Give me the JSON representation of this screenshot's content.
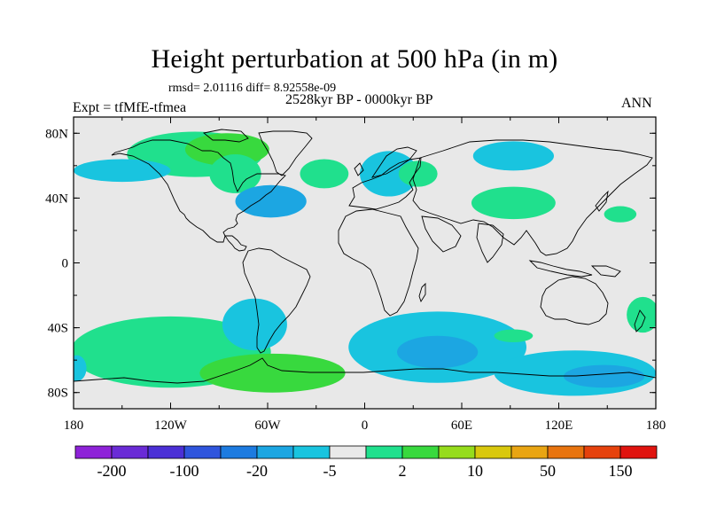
{
  "title": "Height perturbation at 500 hPa (in m)",
  "stats": "rmsd= 2.01116 diff= 8.92558e-09",
  "period": "2528kyr BP - 0000kyr BP",
  "experiment": "Expt = tfMfE-tfmea",
  "season": "ANN",
  "map": {
    "projection": "cylindrical-equidistant",
    "lon_range": [
      -180,
      180
    ],
    "lat_range": [
      -90,
      90
    ],
    "background_color": "#e8e8e8",
    "coastline_color": "#000000",
    "lat_ticks": [
      {
        "value": 80,
        "label": "80N"
      },
      {
        "value": 40,
        "label": "40N"
      },
      {
        "value": 0,
        "label": "0"
      },
      {
        "value": -40,
        "label": "40S"
      },
      {
        "value": -80,
        "label": "80S"
      }
    ],
    "lon_ticks": [
      {
        "value": -180,
        "label": "180"
      },
      {
        "value": -120,
        "label": "120W"
      },
      {
        "value": -60,
        "label": "60W"
      },
      {
        "value": 0,
        "label": "0"
      },
      {
        "value": 60,
        "label": "60E"
      },
      {
        "value": 120,
        "label": "120E"
      },
      {
        "value": 180,
        "label": "180"
      }
    ]
  },
  "colorbar": {
    "colors": [
      "#8e22d8",
      "#6a2bd6",
      "#4b30d6",
      "#2f55dd",
      "#1d7be0",
      "#1ca6e2",
      "#19c4df",
      "#e9e9e9",
      "#20e08d",
      "#38d93e",
      "#96dc1c",
      "#d9c80d",
      "#e9a513",
      "#e8740f",
      "#e6420d",
      "#e0140f"
    ],
    "labels": [
      {
        "after_box": 1,
        "text": "-200"
      },
      {
        "after_box": 3,
        "text": "-100"
      },
      {
        "after_box": 5,
        "text": "-20"
      },
      {
        "after_box": 7,
        "text": "-5"
      },
      {
        "after_box": 9,
        "text": "2"
      },
      {
        "after_box": 11,
        "text": "10"
      },
      {
        "after_box": 13,
        "text": "50"
      },
      {
        "after_box": 15,
        "text": "150"
      }
    ]
  },
  "anomaly_regions": [
    {
      "name": "north-america-positive",
      "color": "#20e08d",
      "lon": -105,
      "lat": 67,
      "rlon": 42,
      "rlat": 14
    },
    {
      "name": "greenland-positive",
      "color": "#38d93e",
      "lon": -85,
      "lat": 70,
      "rlon": 26,
      "rlat": 10
    },
    {
      "name": "east-north-america-positive",
      "color": "#20e08d",
      "lon": -80,
      "lat": 55,
      "rlon": 16,
      "rlat": 12
    },
    {
      "name": "north-pacific-negative",
      "color": "#19c4df",
      "lon": -150,
      "lat": 57,
      "rlon": 30,
      "rlat": 7
    },
    {
      "name": "north-atlantic-west-negative",
      "color": "#1ca6e2",
      "lon": -58,
      "lat": 38,
      "rlon": 22,
      "rlat": 10
    },
    {
      "name": "north-atlantic-east-positive",
      "color": "#20e08d",
      "lon": -25,
      "lat": 55,
      "rlon": 15,
      "rlat": 9
    },
    {
      "name": "europe-negative",
      "color": "#19c4df",
      "lon": 15,
      "lat": 55,
      "rlon": 18,
      "rlat": 14
    },
    {
      "name": "central-asia-positive",
      "color": "#20e08d",
      "lon": 33,
      "lat": 55,
      "rlon": 12,
      "rlat": 8
    },
    {
      "name": "siberia-negative",
      "color": "#19c4df",
      "lon": 92,
      "lat": 66,
      "rlon": 25,
      "rlat": 9
    },
    {
      "name": "asia-positive",
      "color": "#20e08d",
      "lon": 92,
      "lat": 37,
      "rlon": 26,
      "rlat": 10
    },
    {
      "name": "pacific-nw-positive",
      "color": "#20e08d",
      "lon": 158,
      "lat": 30,
      "rlon": 10,
      "rlat": 5
    },
    {
      "name": "south-pacific-positive",
      "color": "#20e08d",
      "lon": -120,
      "lat": -55,
      "rlon": 62,
      "rlat": 22
    },
    {
      "name": "south-america-negative",
      "color": "#19c4df",
      "lon": -68,
      "lat": -38,
      "rlon": 20,
      "rlat": 16
    },
    {
      "name": "antarctic-pacific-positive",
      "color": "#38d93e",
      "lon": -57,
      "lat": -68,
      "rlon": 45,
      "rlat": 12
    },
    {
      "name": "south-indian-negative",
      "color": "#19c4df",
      "lon": 45,
      "lat": -52,
      "rlon": 55,
      "rlat": 22
    },
    {
      "name": "south-indian-strong-negative",
      "color": "#1ca6e2",
      "lon": 45,
      "lat": -55,
      "rlon": 25,
      "rlat": 10
    },
    {
      "name": "south-indian-positive",
      "color": "#20e08d",
      "lon": 92,
      "lat": -45,
      "rlon": 12,
      "rlat": 4
    },
    {
      "name": "australia-antarctic-negative",
      "color": "#19c4df",
      "lon": 130,
      "lat": -68,
      "rlon": 50,
      "rlat": 14
    },
    {
      "name": "australia-antarctic-strong-negative",
      "color": "#1ca6e2",
      "lon": 148,
      "lat": -70,
      "rlon": 25,
      "rlat": 7
    },
    {
      "name": "west-australia-positive",
      "color": "#20e08d",
      "lon": 172,
      "lat": -32,
      "rlon": 10,
      "rlat": 11
    },
    {
      "name": "dateline-south-negative",
      "color": "#19c4df",
      "lon": -178,
      "lat": -65,
      "rlon": 6,
      "rlat": 8
    }
  ]
}
